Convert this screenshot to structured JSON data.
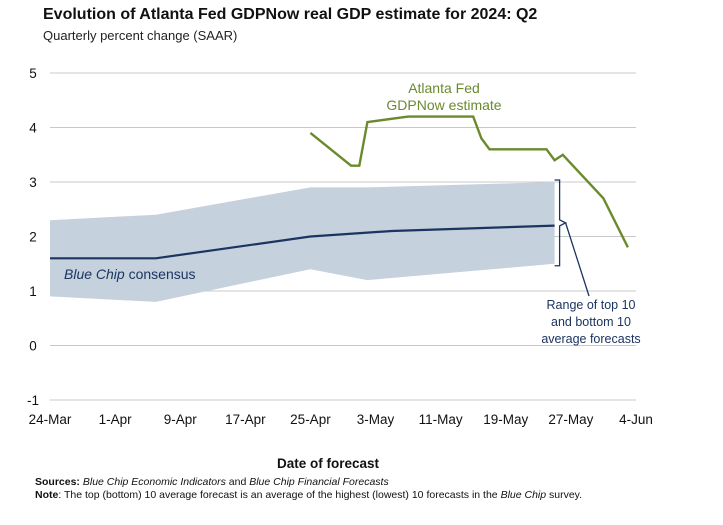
{
  "title": "Evolution of Atlanta Fed GDPNow real GDP estimate for 2024: Q2",
  "subtitle": "Quarterly percent change (SAAR)",
  "xlabel": "Date of forecast",
  "sources_label": "Sources:",
  "sources_text_1": "Blue Chip Economic Indicators",
  "sources_and": " and ",
  "sources_text_2": "Blue Chip Financial Forecasts",
  "note_label": "Note",
  "note_text_1": ": The top (bottom) 10 average forecast is an average of the highest (lowest) 10 forecasts in the ",
  "note_italic": "Blue Chip",
  "note_text_2": " survey.",
  "annotations": {
    "gdpnow_line1": "Atlanta Fed",
    "gdpnow_line2": "GDPNow estimate",
    "bluechip_italic": "Blue Chip",
    "bluechip_rest": " consensus",
    "range_line1": "Range of top 10",
    "range_line2": "and bottom 10",
    "range_line3": "average forecasts"
  },
  "colors": {
    "gdpnow": "#6b8a2e",
    "consensus": "#1c3461",
    "band": "#c5d1dc",
    "grid": "#c8c8c8",
    "text": "#111111"
  },
  "chart_data": {
    "type": "line",
    "x_ticks": [
      "24-Mar",
      "1-Apr",
      "9-Apr",
      "17-Apr",
      "25-Apr",
      "3-May",
      "11-May",
      "19-May",
      "27-May",
      "4-Jun"
    ],
    "y_ticks": [
      -1,
      0,
      1,
      2,
      3,
      4,
      5
    ],
    "ylim": [
      -1,
      5
    ],
    "xlim": [
      "2024-03-24",
      "2024-06-04"
    ],
    "grid": true,
    "series": [
      {
        "name": "Atlanta Fed GDPNow estimate",
        "x": [
          "2024-04-25",
          "2024-04-30",
          "2024-05-01",
          "2024-05-02",
          "2024-05-07",
          "2024-05-08",
          "2024-05-15",
          "2024-05-16",
          "2024-05-17",
          "2024-05-24",
          "2024-05-25",
          "2024-05-26",
          "2024-05-31",
          "2024-06-03"
        ],
        "y": [
          3.9,
          3.3,
          3.3,
          4.1,
          4.2,
          4.2,
          4.2,
          3.8,
          3.6,
          3.6,
          3.4,
          3.5,
          2.7,
          1.8
        ]
      },
      {
        "name": "Blue Chip consensus",
        "x": [
          "2024-03-24",
          "2024-04-06",
          "2024-04-25",
          "2024-05-05",
          "2024-05-25"
        ],
        "y": [
          1.6,
          1.6,
          2.0,
          2.1,
          2.2
        ]
      },
      {
        "name": "Range of top 10 and bottom 10 average forecasts",
        "x": [
          "2024-03-24",
          "2024-04-06",
          "2024-04-25",
          "2024-05-02",
          "2024-05-25"
        ],
        "upper": [
          2.3,
          2.4,
          2.9,
          2.9,
          3.0
        ],
        "lower": [
          0.9,
          0.8,
          1.4,
          1.2,
          1.5
        ]
      }
    ]
  }
}
